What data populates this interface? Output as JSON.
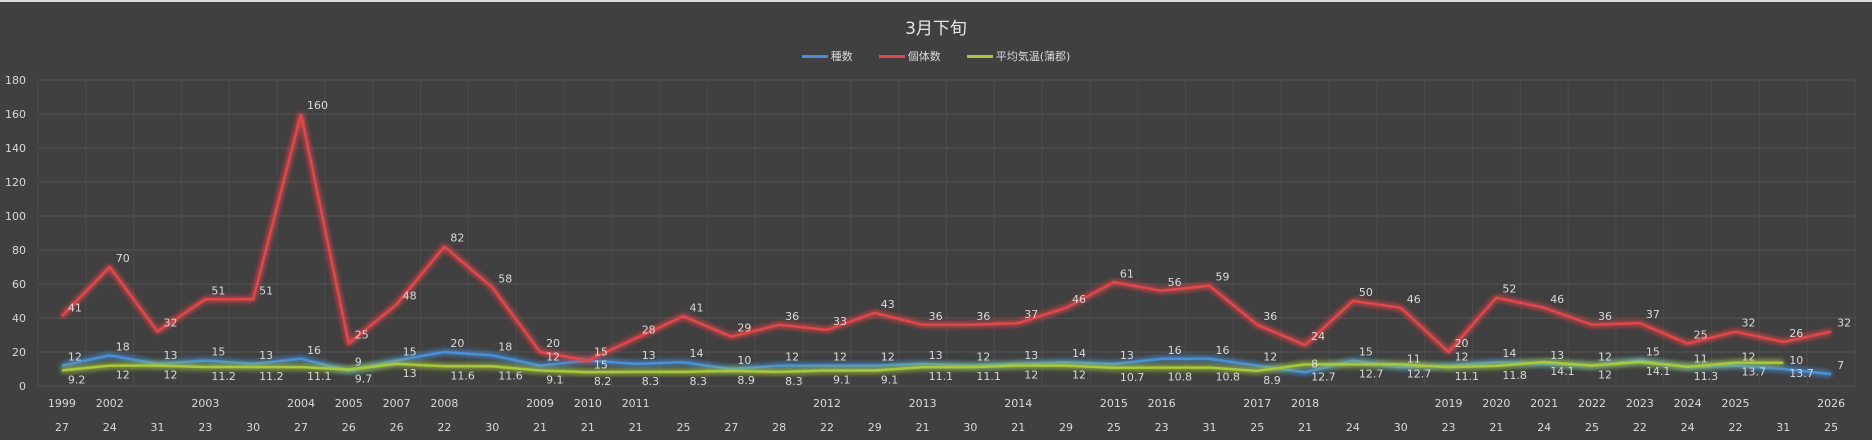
{
  "chart_data": {
    "type": "line",
    "title": "3月下旬",
    "legend_position": "top",
    "ylim": [
      0,
      180
    ],
    "yticks": [
      0,
      20,
      40,
      60,
      80,
      100,
      120,
      140,
      160,
      180
    ],
    "grid": true,
    "year_labels": [
      "1999",
      "2002",
      "",
      "2003",
      "",
      "2004",
      "2005",
      "2007",
      "2008",
      "",
      "2009",
      "2010",
      "2011",
      "",
      "",
      "",
      "2012",
      "",
      "2013",
      "",
      "2014",
      "",
      "2015",
      "2016",
      "",
      "2017",
      "2018",
      "",
      "",
      "2019",
      "2020",
      "2021",
      "2022",
      "2023",
      "2024",
      "2025",
      "",
      "2026"
    ],
    "day_labels": [
      "27",
      "24",
      "31",
      "23",
      "30",
      "27",
      "26",
      "26",
      "22",
      "30",
      "21",
      "21",
      "21",
      "25",
      "27",
      "28",
      "22",
      "29",
      "21",
      "30",
      "21",
      "29",
      "25",
      "23",
      "31",
      "25",
      "21",
      "24",
      "30",
      "23",
      "21",
      "24",
      "25",
      "22",
      "24",
      "22",
      "31",
      "25"
    ],
    "series": [
      {
        "name": "種数",
        "color": "#4a8fd6",
        "values": [
          12,
          18,
          13,
          15,
          13,
          16,
          9,
          15,
          20,
          18,
          12,
          15,
          13,
          14,
          10,
          12,
          12,
          12,
          13,
          12,
          13,
          14,
          13,
          16,
          16,
          12,
          8,
          15,
          11,
          12,
          14,
          13,
          12,
          15,
          11,
          12,
          10,
          7
        ]
      },
      {
        "name": "個体数",
        "color": "#e0474c",
        "values": [
          41,
          70,
          32,
          51,
          51,
          160,
          25,
          48,
          82,
          58,
          20,
          15,
          28,
          41,
          29,
          36,
          33,
          43,
          36,
          36,
          37,
          46,
          61,
          56,
          59,
          36,
          24,
          50,
          46,
          20,
          52,
          46,
          36,
          37,
          25,
          32,
          26,
          32
        ]
      },
      {
        "name": "平均気温(蒲郡)",
        "color": "#a8c83c",
        "values": [
          9.2,
          12,
          12,
          11.2,
          11.2,
          11.1,
          9.7,
          13,
          11.6,
          11.6,
          9.1,
          8.2,
          8.3,
          8.3,
          8.9,
          8.3,
          9.1,
          9.1,
          11.1,
          11.1,
          12,
          12,
          10.7,
          10.8,
          10.8,
          8.9,
          12.7,
          12.7,
          12.7,
          11.1,
          11.8,
          14.1,
          12,
          14.1,
          11.3,
          13.7,
          13.7,
          null
        ]
      }
    ]
  }
}
